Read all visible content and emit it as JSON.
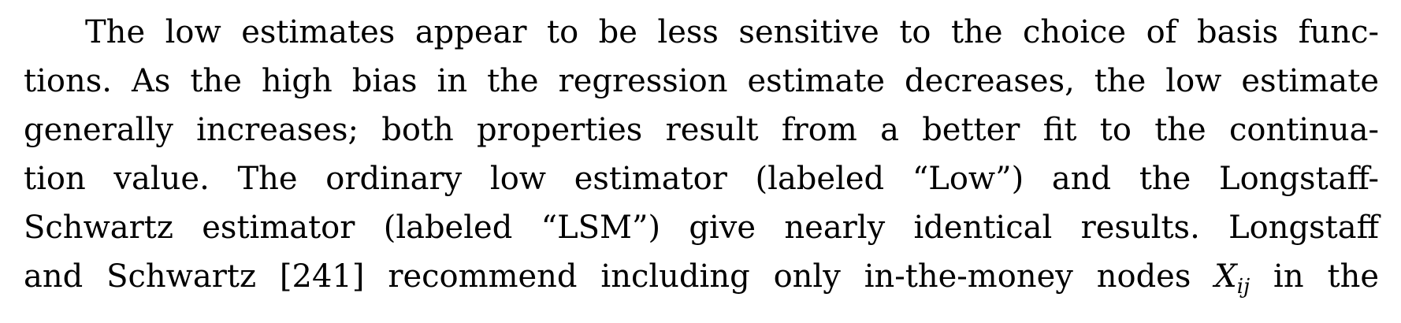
{
  "paragraph": {
    "lines": [
      "The low estimates appear to be less sensitive to the choice of basis func-",
      "tions. As the high bias in the regression estimate decreases, the low estimate",
      "generally increases; both properties result from a better fit to the continua-",
      "tion value. The ordinary low estimator (labeled “Low”) and the Longstaff-",
      "Schwartz estimator (labeled “LSM”) give nearly identical results. Longstaff"
    ],
    "last_line": {
      "before": "and Schwartz [241] recommend including only in-the-money nodes",
      "math_var": "X",
      "math_sub": "ij",
      "after": "in the"
    }
  }
}
